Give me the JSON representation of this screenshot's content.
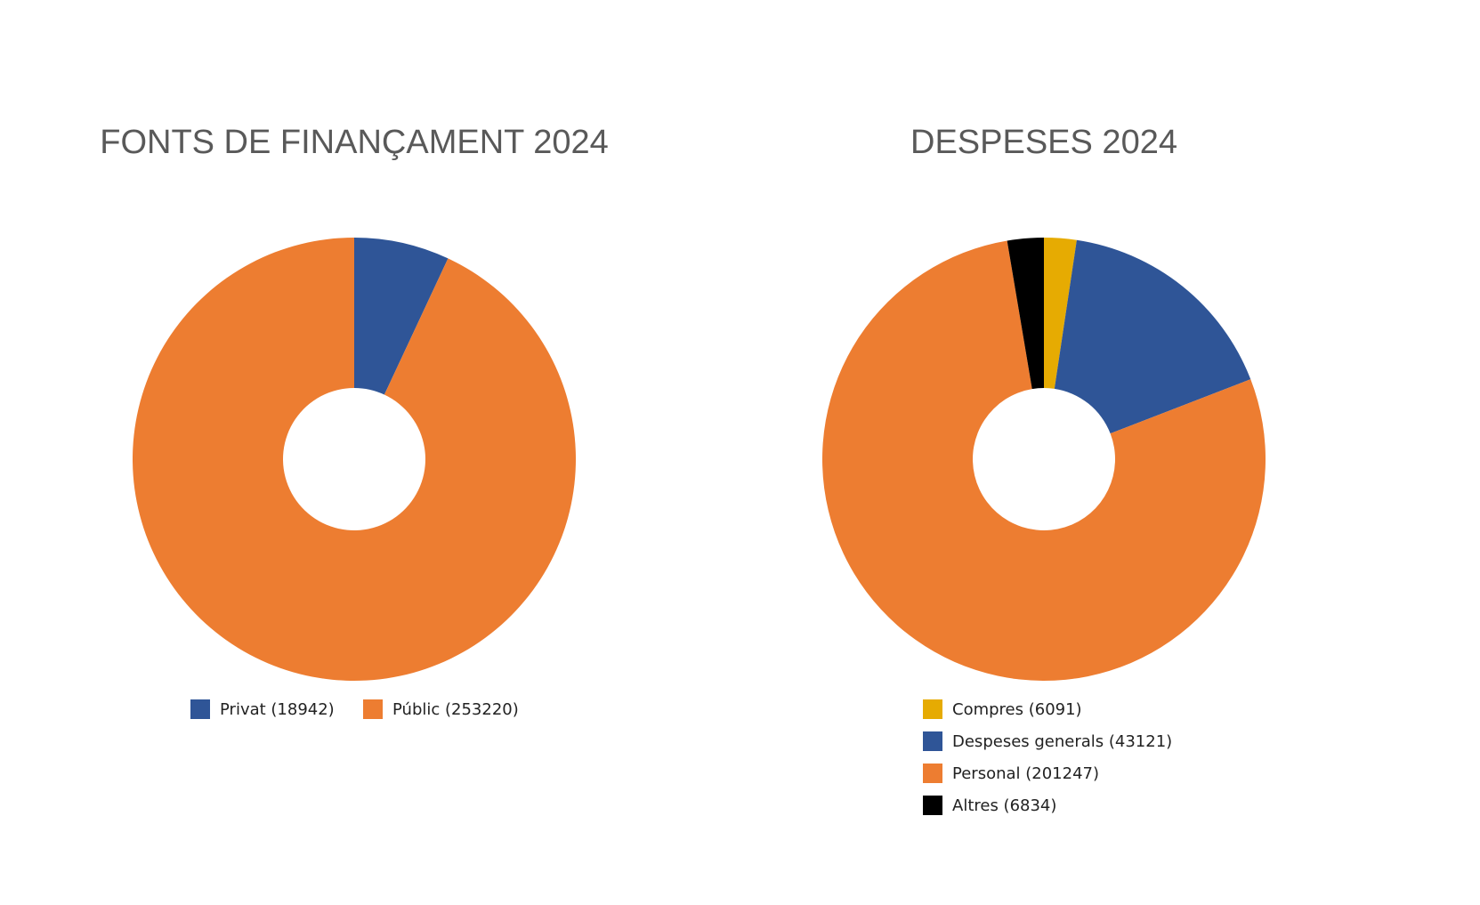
{
  "chart_data": [
    {
      "type": "donut",
      "title": "FONTS DE FINANÇAMENT 2024",
      "categories": [
        "Privat (18942)",
        "Públic (253220)"
      ],
      "values": [
        18942,
        253220
      ],
      "colors": [
        "#2f5597",
        "#ed7d31"
      ]
    },
    {
      "type": "donut",
      "title": "DESPESES 2024",
      "categories": [
        "Compres (6091)",
        "Despeses generals (43121)",
        "Personal (201247)",
        "Altres (6834)"
      ],
      "values": [
        6091,
        43121,
        201247,
        6834
      ],
      "colors": [
        "#e6ab02",
        "#2f5597",
        "#ed7d31",
        "#000000"
      ]
    }
  ]
}
